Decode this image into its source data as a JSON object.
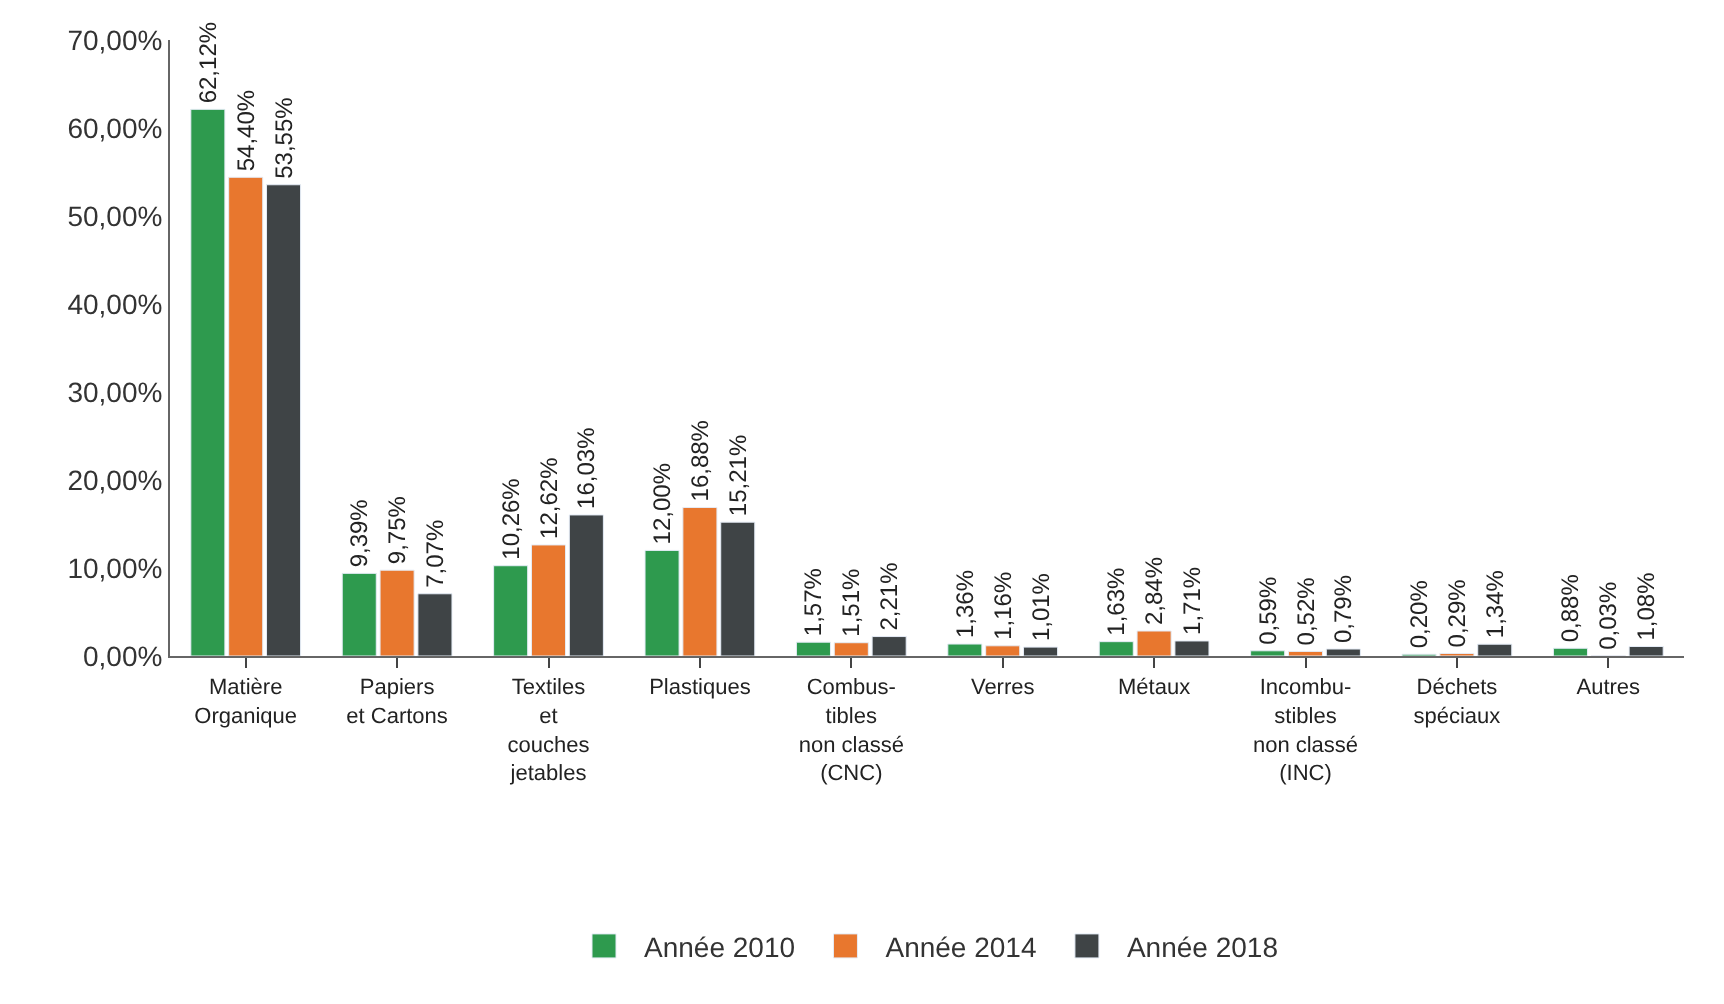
{
  "chart_data": {
    "type": "bar",
    "categories": [
      "Matière\nOrganique",
      "Papiers\net Cartons",
      "Textiles\net\ncouches\njetables",
      "Plastiques",
      "Combus-\ntibles\nnon classé\n(CNC)",
      "Verres",
      "Métaux",
      "Incombu-\nstibles\nnon classé\n(INC)",
      "Déchets\nspéciaux",
      "Autres"
    ],
    "series": [
      {
        "name": "Année 2010",
        "color": "#2e9a4e",
        "values": [
          62.12,
          9.39,
          10.26,
          12.0,
          1.57,
          1.36,
          1.63,
          0.59,
          0.2,
          0.88
        ],
        "value_labels": [
          "62,12%",
          "9,39%",
          "10,26%",
          "12,00%",
          "1,57%",
          "1,36%",
          "1,63%",
          "0,59%",
          "0,20%",
          "0,88%"
        ]
      },
      {
        "name": "Année 2014",
        "color": "#e8772e",
        "values": [
          54.4,
          9.75,
          12.62,
          16.88,
          1.51,
          1.16,
          2.84,
          0.52,
          0.29,
          0.03
        ],
        "value_labels": [
          "54,40%",
          "9,75%",
          "12,62%",
          "16,88%",
          "1,51%",
          "1,16%",
          "2,84%",
          "0,52%",
          "0,29%",
          "0,03%"
        ]
      },
      {
        "name": "Année 2018",
        "color": "#3f4446",
        "values": [
          53.55,
          7.07,
          16.03,
          15.21,
          2.21,
          1.01,
          1.71,
          0.79,
          1.34,
          1.08
        ],
        "value_labels": [
          "53,55%",
          "7,07%",
          "16,03%",
          "15,21%",
          "2,21%",
          "1,01%",
          "1,71%",
          "0,79%",
          "1,34%",
          "1,08%"
        ]
      }
    ],
    "ylim": [
      0,
      70
    ],
    "yticks": [
      {
        "value": 0,
        "label": "0,00%"
      },
      {
        "value": 10,
        "label": "10,00%"
      },
      {
        "value": 20,
        "label": "20,00%"
      },
      {
        "value": 30,
        "label": "30,00%"
      },
      {
        "value": 40,
        "label": "40,00%"
      },
      {
        "value": 50,
        "label": "50,00%"
      },
      {
        "value": 60,
        "label": "60,00%"
      },
      {
        "value": 70,
        "label": "70,00%"
      }
    ],
    "legend": "bottom"
  }
}
